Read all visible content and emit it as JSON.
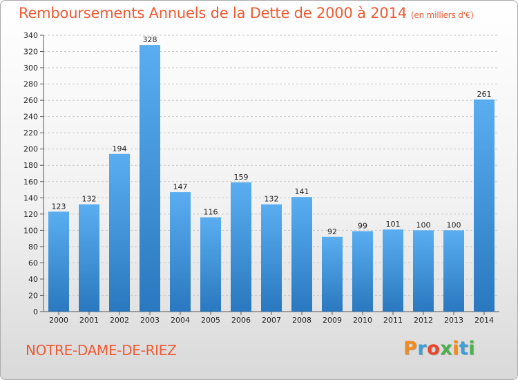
{
  "header": {
    "title": "Remboursements Annuels de la Dette de 2000 à 2014",
    "unit": "(en milliers d'€)"
  },
  "footer": {
    "commune": "NOTRE-DAME-DE-RIEZ",
    "logo_text": "Proxiti",
    "logo_colors": [
      "#f28a1c",
      "#3aa0d8",
      "#e8452a",
      "#4caf50",
      "#f28a1c",
      "#3aa0d8",
      "#4caf50"
    ]
  },
  "colors": {
    "bar_top": "#5aaef0",
    "bar_bottom": "#2a78bf",
    "grid": "#c8c8c8",
    "accent": "#ee5a34"
  },
  "chart_data": {
    "type": "bar",
    "categories": [
      "2000",
      "2001",
      "2002",
      "2003",
      "2004",
      "2005",
      "2006",
      "2007",
      "2008",
      "2009",
      "2010",
      "2011",
      "2012",
      "2013",
      "2014"
    ],
    "values": [
      123,
      132,
      194,
      328,
      147,
      116,
      159,
      132,
      141,
      92,
      99,
      101,
      100,
      100,
      261
    ],
    "ylim": [
      0,
      340
    ],
    "ytick_step": 20,
    "grid": true,
    "xlabel": "",
    "ylabel": ""
  }
}
